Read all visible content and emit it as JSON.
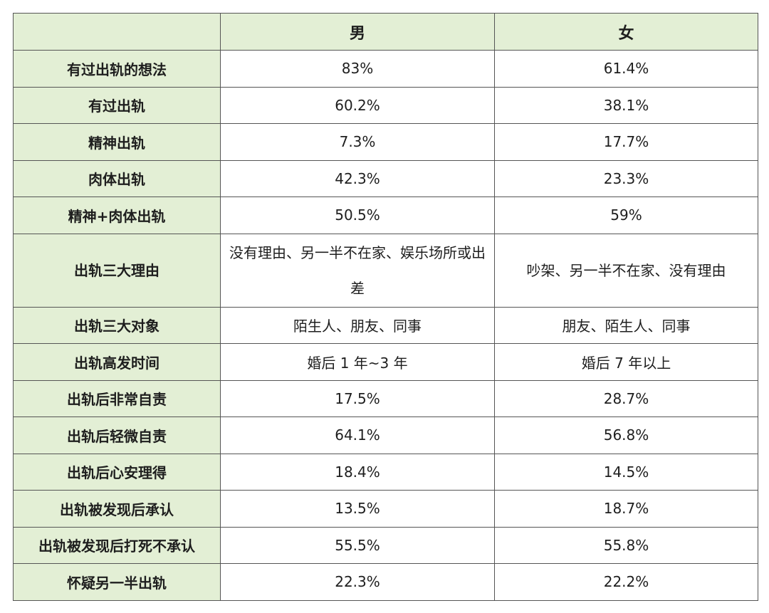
{
  "header": {
    "corner": "",
    "col_male": "男",
    "col_female": "女"
  },
  "rows": [
    {
      "label": "有过出轨的想法",
      "male": "83%",
      "female": "61.4%"
    },
    {
      "label": "有过出轨",
      "male": "60.2%",
      "female": "38.1%"
    },
    {
      "label": "精神出轨",
      "male": "7.3%",
      "female": "17.7%"
    },
    {
      "label": "肉体出轨",
      "male": "42.3%",
      "female": "23.3%"
    },
    {
      "label": "精神+肉体出轨",
      "male": "50.5%",
      "female": "59%"
    },
    {
      "label": "出轨三大理由",
      "male": "没有理由、另一半不在家、娱乐场所或出差",
      "female": "吵架、另一半不在家、没有理由"
    },
    {
      "label": "出轨三大对象",
      "male": "陌生人、朋友、同事",
      "female": "朋友、陌生人、同事"
    },
    {
      "label": "出轨高发时间",
      "male": "婚后 1 年~3 年",
      "female": "婚后 7 年以上"
    },
    {
      "label": "出轨后非常自责",
      "male": "17.5%",
      "female": "28.7%"
    },
    {
      "label": "出轨后轻微自责",
      "male": "64.1%",
      "female": "56.8%"
    },
    {
      "label": "出轨后心安理得",
      "male": "18.4%",
      "female": "14.5%"
    },
    {
      "label": "出轨被发现后承认",
      "male": "13.5%",
      "female": "18.7%"
    },
    {
      "label": "出轨被发现后打死不承认",
      "male": "55.5%",
      "female": "55.8%"
    },
    {
      "label": "怀疑另一半出轨",
      "male": "22.3%",
      "female": "22.2%"
    }
  ]
}
